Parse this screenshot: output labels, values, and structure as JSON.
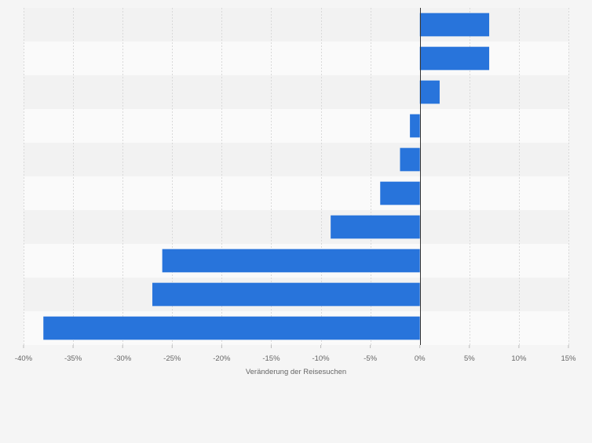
{
  "chart_data": {
    "type": "bar",
    "orientation": "horizontal",
    "title": "",
    "xlabel": "Veränderung der Reisesuchen",
    "ylabel": "",
    "xlim": [
      -40,
      15
    ],
    "x_ticks": [
      -40,
      -35,
      -30,
      -25,
      -20,
      -15,
      -10,
      -5,
      0,
      5,
      10,
      15
    ],
    "x_tick_labels": [
      "-40%",
      "-35%",
      "-30%",
      "-25%",
      "-20%",
      "-15%",
      "-10%",
      "-5%",
      "0%",
      "5%",
      "10%",
      "15%"
    ],
    "categories": [
      "",
      "",
      "",
      "",
      "",
      "",
      "",
      "",
      "",
      ""
    ],
    "values": [
      7,
      7,
      2,
      -1,
      -2,
      -4,
      -9,
      -26,
      -27,
      -38
    ],
    "unit": "%",
    "grid": true,
    "legend": "none",
    "bar_color": "#2874db",
    "band_colors": [
      "#f2f2f2",
      "#fafafa"
    ],
    "grid_color": "#d9d9d9",
    "zero_line_color": "#333333"
  }
}
